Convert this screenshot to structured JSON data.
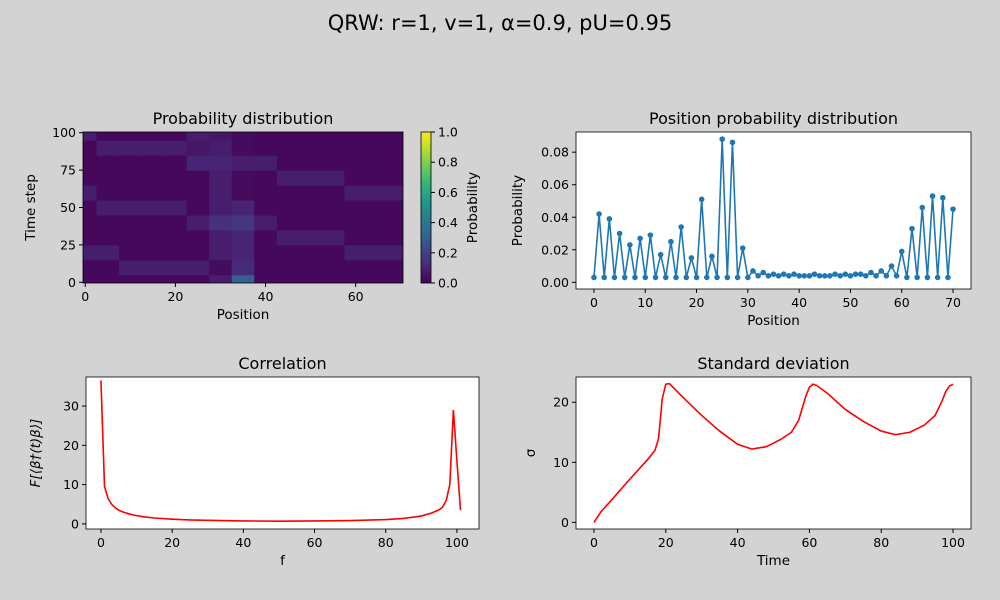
{
  "title": "QRW: r=1, v=1, α=0.9, pU=0.95",
  "chart_data": [
    {
      "type": "heatmap",
      "title": "Probability distribution",
      "xlabel": "Position",
      "ylabel": "Time step",
      "x": [
        0,
        5,
        10,
        15,
        20,
        25,
        30,
        35,
        40,
        45,
        50,
        55,
        60,
        65,
        70
      ],
      "y": [
        0,
        10,
        20,
        30,
        40,
        50,
        60,
        70,
        80,
        90,
        100
      ],
      "z": [
        [
          0.02,
          0.02,
          0.02,
          0.02,
          0.02,
          0.02,
          0.08,
          0.3,
          0.02,
          0.02,
          0.02,
          0.02,
          0.02,
          0.02,
          0.02
        ],
        [
          0.02,
          0.02,
          0.08,
          0.08,
          0.08,
          0.08,
          0.03,
          0.12,
          0.02,
          0.02,
          0.02,
          0.02,
          0.02,
          0.02,
          0.02
        ],
        [
          0.08,
          0.08,
          0.02,
          0.02,
          0.02,
          0.02,
          0.08,
          0.1,
          0.02,
          0.02,
          0.02,
          0.02,
          0.08,
          0.08,
          0.08
        ],
        [
          0.02,
          0.02,
          0.02,
          0.02,
          0.02,
          0.02,
          0.08,
          0.1,
          0.02,
          0.08,
          0.08,
          0.08,
          0.02,
          0.02,
          0.02
        ],
        [
          0.02,
          0.02,
          0.02,
          0.02,
          0.02,
          0.08,
          0.14,
          0.16,
          0.08,
          0.02,
          0.02,
          0.02,
          0.02,
          0.02,
          0.02
        ],
        [
          0.02,
          0.08,
          0.08,
          0.08,
          0.08,
          0.02,
          0.08,
          0.1,
          0.02,
          0.02,
          0.02,
          0.02,
          0.02,
          0.02,
          0.02
        ],
        [
          0.08,
          0.02,
          0.02,
          0.02,
          0.02,
          0.02,
          0.08,
          0.03,
          0.02,
          0.02,
          0.02,
          0.02,
          0.08,
          0.08,
          0.08
        ],
        [
          0.02,
          0.02,
          0.02,
          0.02,
          0.02,
          0.02,
          0.08,
          0.03,
          0.02,
          0.08,
          0.08,
          0.08,
          0.02,
          0.02,
          0.02
        ],
        [
          0.02,
          0.02,
          0.02,
          0.02,
          0.02,
          0.1,
          0.1,
          0.08,
          0.08,
          0.02,
          0.02,
          0.02,
          0.02,
          0.02,
          0.02
        ],
        [
          0.02,
          0.08,
          0.08,
          0.08,
          0.08,
          0.06,
          0.08,
          0.03,
          0.02,
          0.02,
          0.02,
          0.02,
          0.02,
          0.02,
          0.02
        ],
        [
          0.08,
          0.02,
          0.02,
          0.02,
          0.02,
          0.08,
          0.06,
          0.03,
          0.02,
          0.02,
          0.02,
          0.02,
          0.02,
          0.02,
          0.02
        ]
      ],
      "xlim": [
        -0.5,
        70.5
      ],
      "ylim": [
        -0.5,
        100.5
      ],
      "xticks": [
        0,
        20,
        40,
        60
      ],
      "yticks": [
        0,
        25,
        50,
        75,
        100
      ],
      "colormap": "viridis",
      "colorbar": {
        "label": "Probability",
        "lim": [
          0,
          1
        ],
        "ticks": [
          {
            "value": 0,
            "label": "0.0"
          },
          0.2,
          0.4,
          0.6,
          0.8,
          {
            "value": 1,
            "label": "1.0"
          }
        ]
      }
    },
    {
      "type": "line",
      "title": "Position probability distribution",
      "xlabel": "Position",
      "ylabel": "Probability",
      "marker": true,
      "x": [
        0,
        1,
        2,
        3,
        4,
        5,
        6,
        7,
        8,
        9,
        10,
        11,
        12,
        13,
        14,
        15,
        16,
        17,
        18,
        19,
        20,
        21,
        22,
        23,
        24,
        25,
        26,
        27,
        28,
        29,
        30,
        31,
        32,
        33,
        34,
        35,
        36,
        37,
        38,
        39,
        40,
        41,
        42,
        43,
        44,
        45,
        46,
        47,
        48,
        49,
        50,
        51,
        52,
        53,
        54,
        55,
        56,
        57,
        58,
        59,
        60,
        61,
        62,
        63,
        64,
        65,
        66,
        67,
        68,
        69,
        70
      ],
      "series": [
        {
          "color": "#1f77b4",
          "values": [
            0.003,
            0.042,
            0.003,
            0.039,
            0.003,
            0.03,
            0.003,
            0.023,
            0.003,
            0.027,
            0.003,
            0.029,
            0.003,
            0.017,
            0.003,
            0.025,
            0.003,
            0.034,
            0.003,
            0.015,
            0.003,
            0.051,
            0.003,
            0.016,
            0.003,
            0.088,
            0.003,
            0.086,
            0.003,
            0.021,
            0.003,
            0.007,
            0.004,
            0.006,
            0.004,
            0.005,
            0.004,
            0.005,
            0.004,
            0.005,
            0.004,
            0.004,
            0.004,
            0.005,
            0.004,
            0.004,
            0.004,
            0.005,
            0.004,
            0.005,
            0.004,
            0.005,
            0.005,
            0.004,
            0.006,
            0.004,
            0.007,
            0.004,
            0.01,
            0.004,
            0.019,
            0.003,
            0.033,
            0.003,
            0.046,
            0.003,
            0.053,
            0.003,
            0.052,
            0.003,
            0.045
          ]
        }
      ],
      "xlim": [
        -3.5,
        73.5
      ],
      "ylim": [
        -0.0041,
        0.0924
      ],
      "xticks": [
        0,
        10,
        20,
        30,
        40,
        50,
        60,
        70
      ],
      "yticks": [
        {
          "value": 0,
          "label": "0.00"
        },
        0.02,
        0.04,
        0.06,
        0.08
      ]
    },
    {
      "type": "line",
      "title": "Correlation",
      "xlabel": "f",
      "ylabel": "F[⟨β†(t)β⟩]",
      "x": [
        0,
        1,
        2,
        3,
        4,
        5,
        6,
        8,
        10,
        12,
        15,
        20,
        25,
        30,
        40,
        50,
        60,
        70,
        80,
        85,
        90,
        93,
        95,
        96,
        97,
        98,
        99,
        100,
        101
      ],
      "series": [
        {
          "color": "#ff0000",
          "values": [
            36.5,
            9.5,
            6.5,
            5,
            4.1,
            3.5,
            3.1,
            2.5,
            2.1,
            1.8,
            1.5,
            1.2,
            1.0,
            0.9,
            0.75,
            0.7,
            0.75,
            0.85,
            1.1,
            1.4,
            2.0,
            2.8,
            3.6,
            4.3,
            6,
            10,
            29,
            16,
            3.5
          ]
        }
      ],
      "xlim": [
        -4.2,
        106.2
      ],
      "ylim": [
        -1.3,
        37.4
      ],
      "xticks": [
        0,
        20,
        40,
        60,
        80,
        100
      ],
      "yticks": [
        0,
        10,
        20,
        30
      ]
    },
    {
      "type": "line",
      "title": "Standard deviation",
      "xlabel": "Time",
      "ylabel": "σ",
      "x": [
        0,
        2,
        5,
        10,
        15,
        17,
        18,
        19,
        20,
        21,
        22,
        25,
        30,
        35,
        40,
        44,
        48,
        52,
        55,
        57,
        58,
        59,
        60,
        61,
        62,
        65,
        70,
        75,
        80,
        84,
        88,
        92,
        95,
        97,
        98,
        99,
        100
      ],
      "series": [
        {
          "color": "#ff0000",
          "values": [
            0,
            1.8,
            3.8,
            7.2,
            10.5,
            12,
            14,
            20.5,
            23,
            23.1,
            22.5,
            20.7,
            17.8,
            15.2,
            13,
            12.2,
            12.6,
            13.8,
            15,
            17,
            19,
            21,
            22.5,
            23,
            22.8,
            21.5,
            18.8,
            16.8,
            15.2,
            14.6,
            15,
            16.2,
            17.8,
            20.3,
            21.8,
            22.7,
            23
          ]
        }
      ],
      "xlim": [
        -5,
        105
      ],
      "ylim": [
        -1.1,
        24.2
      ],
      "xticks": [
        0,
        20,
        40,
        60,
        80,
        100
      ],
      "yticks": [
        0,
        10,
        20
      ]
    }
  ]
}
